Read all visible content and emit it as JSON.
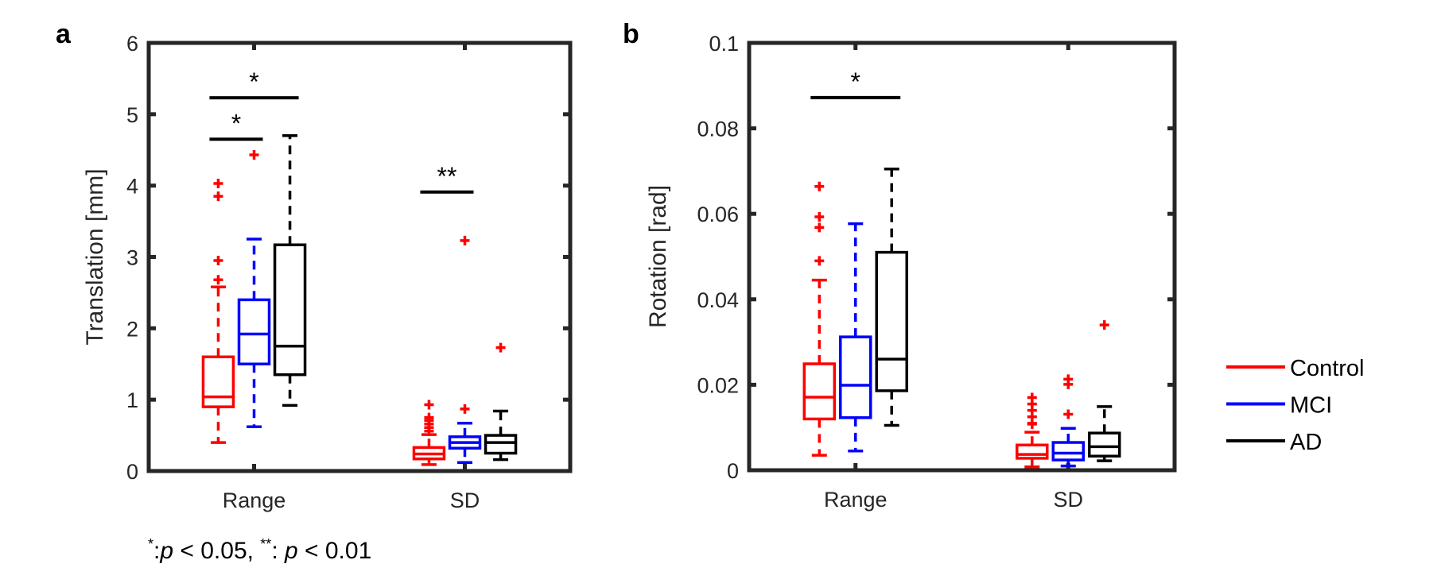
{
  "chart_data": [
    {
      "type": "box",
      "panel_label": "a",
      "ylabel": "Translation [mm]",
      "ylim": [
        0,
        6
      ],
      "yticks": [
        "0",
        "1",
        "2",
        "3",
        "4",
        "5",
        "6"
      ],
      "categories": [
        "Range",
        "SD"
      ],
      "groups": [
        "Control",
        "MCI",
        "AD"
      ],
      "boxes": [
        {
          "category": "Range",
          "group": "Control",
          "lower_whisker": 0.4,
          "q1": 0.9,
          "median": 1.04,
          "q3": 1.6,
          "upper_whisker": 2.58,
          "outliers": [
            2.68,
            2.95,
            3.85,
            4.03
          ]
        },
        {
          "category": "Range",
          "group": "MCI",
          "lower_whisker": 0.62,
          "q1": 1.5,
          "median": 1.92,
          "q3": 2.4,
          "upper_whisker": 3.25,
          "outliers": [
            4.43
          ]
        },
        {
          "category": "Range",
          "group": "AD",
          "lower_whisker": 0.92,
          "q1": 1.35,
          "median": 1.75,
          "q3": 3.17,
          "upper_whisker": 4.7,
          "outliers": []
        },
        {
          "category": "SD",
          "group": "Control",
          "lower_whisker": 0.09,
          "q1": 0.17,
          "median": 0.24,
          "q3": 0.33,
          "upper_whisker": 0.51,
          "outliers": [
            0.56,
            0.61,
            0.66,
            0.71,
            0.75,
            0.93
          ]
        },
        {
          "category": "SD",
          "group": "MCI",
          "lower_whisker": 0.12,
          "q1": 0.32,
          "median": 0.4,
          "q3": 0.48,
          "upper_whisker": 0.67,
          "outliers": [
            0.87,
            3.23
          ]
        },
        {
          "category": "SD",
          "group": "AD",
          "lower_whisker": 0.16,
          "q1": 0.25,
          "median": 0.4,
          "q3": 0.5,
          "upper_whisker": 0.84,
          "outliers": [
            1.73
          ]
        }
      ],
      "significance": [
        {
          "category": "Range",
          "from": "Control",
          "to": "AD",
          "y": 5.23,
          "label": "*"
        },
        {
          "category": "Range",
          "from": "Control",
          "to": "MCI",
          "y": 4.65,
          "label": "*"
        },
        {
          "category": "SD",
          "from": "Control",
          "to": "MCI",
          "y": 3.91,
          "label": "**"
        }
      ]
    },
    {
      "type": "box",
      "panel_label": "b",
      "ylabel": "Rotation [rad]",
      "ylim": [
        0,
        0.1
      ],
      "yticks": [
        "0",
        "0.02",
        "0.04",
        "0.06",
        "0.08",
        "0.1"
      ],
      "categories": [
        "Range",
        "SD"
      ],
      "groups": [
        "Control",
        "MCI",
        "AD"
      ],
      "boxes": [
        {
          "category": "Range",
          "group": "Control",
          "lower_whisker": 0.0035,
          "q1": 0.012,
          "median": 0.0171,
          "q3": 0.0249,
          "upper_whisker": 0.0445,
          "outliers": [
            0.049,
            0.0568,
            0.0593,
            0.0664
          ]
        },
        {
          "category": "Range",
          "group": "MCI",
          "lower_whisker": 0.0045,
          "q1": 0.0123,
          "median": 0.0199,
          "q3": 0.0312,
          "upper_whisker": 0.0577,
          "outliers": []
        },
        {
          "category": "Range",
          "group": "AD",
          "lower_whisker": 0.0105,
          "q1": 0.0186,
          "median": 0.026,
          "q3": 0.051,
          "upper_whisker": 0.0705,
          "outliers": []
        },
        {
          "category": "SD",
          "group": "Control",
          "lower_whisker": 0.0008,
          "q1": 0.0028,
          "median": 0.0037,
          "q3": 0.0059,
          "upper_whisker": 0.0089,
          "outliers": [
            0.0108,
            0.011,
            0.0125,
            0.014,
            0.0155,
            0.017
          ]
        },
        {
          "category": "SD",
          "group": "MCI",
          "lower_whisker": 0.001,
          "q1": 0.0024,
          "median": 0.004,
          "q3": 0.0065,
          "upper_whisker": 0.0098,
          "outliers": [
            0.0131,
            0.0201,
            0.0213
          ]
        },
        {
          "category": "SD",
          "group": "AD",
          "lower_whisker": 0.0022,
          "q1": 0.0033,
          "median": 0.0055,
          "q3": 0.0087,
          "upper_whisker": 0.0149,
          "outliers": [
            0.034
          ]
        }
      ],
      "significance": [
        {
          "category": "Range",
          "from": "Control",
          "to": "AD",
          "y": 0.0872,
          "label": "*"
        }
      ]
    }
  ],
  "legend": {
    "placement": "right",
    "entries": [
      {
        "label": "Control",
        "color": "#ff0000"
      },
      {
        "label": "MCI",
        "color": "#0000ff"
      },
      {
        "label": "AD",
        "color": "#000000"
      }
    ]
  },
  "colors": {
    "Control": "#ff0000",
    "MCI": "#0000ff",
    "AD": "#000000",
    "outlier": "#ff0000",
    "axis": "#262626"
  },
  "footnote": {
    "star1": "*",
    "part1": ":",
    "p1": "p",
    "part2": " < 0.05, ",
    "star2": "**",
    "part3": ": ",
    "p2": "p",
    "part4": " < 0.01"
  }
}
